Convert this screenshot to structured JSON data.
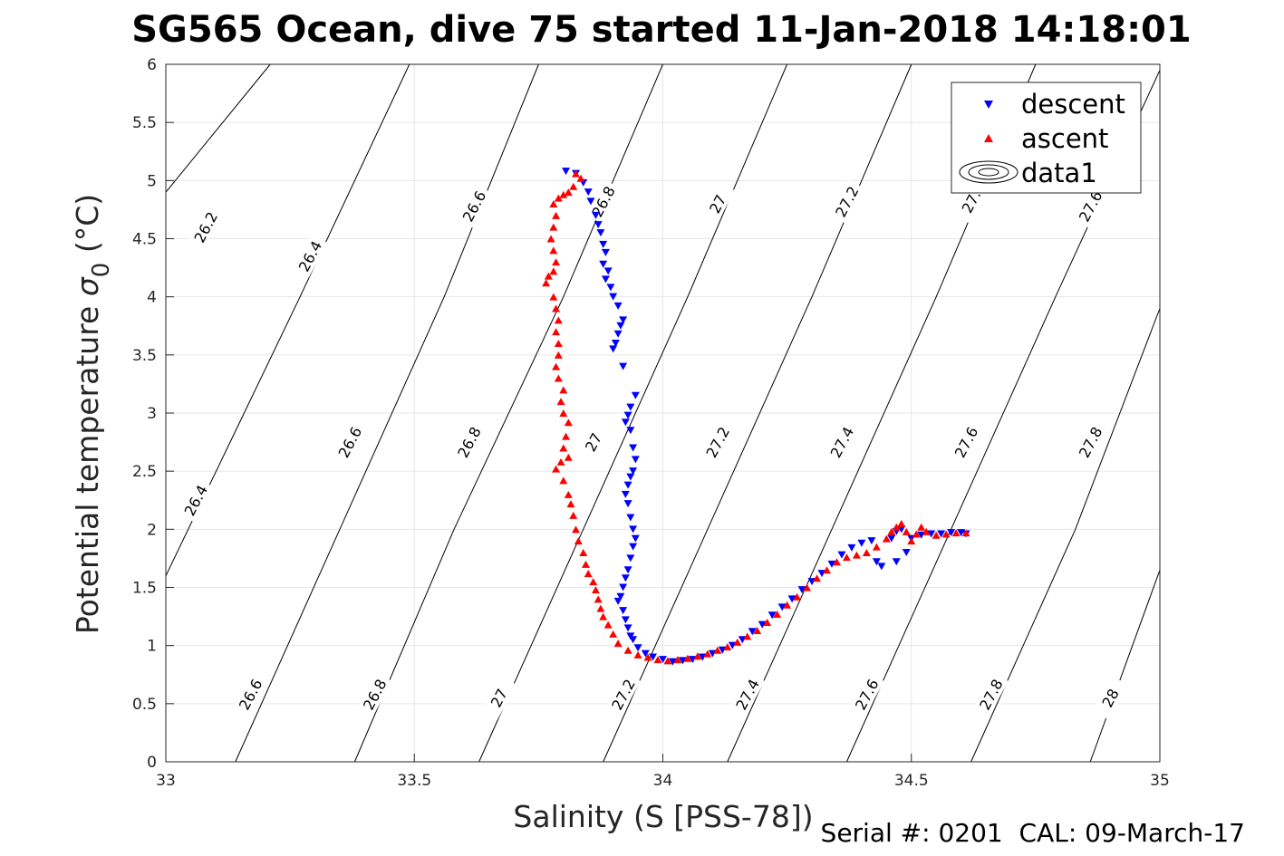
{
  "chart_data": {
    "type": "scatter",
    "title": "SG565 Ocean, dive 75 started 11-Jan-2018 14:18:01",
    "xlabel": "Salinity (S [PSS-78])",
    "ylabel": "Potential temperature",
    "ylabel_symbol": "σ",
    "ylabel_sub": "0",
    "ylabel_unit": "(°C)",
    "footer": "Serial #: 0201  CAL: 09-March-17",
    "xlim": [
      33,
      35
    ],
    "ylim": [
      0,
      6
    ],
    "xticks": [
      "33",
      "33.5",
      "34",
      "34.5",
      "35"
    ],
    "yticks": [
      "0",
      "0.5",
      "1",
      "1.5",
      "2",
      "2.5",
      "3",
      "3.5",
      "4",
      "4.5",
      "5",
      "5.5",
      "6"
    ],
    "grid": true,
    "legend": {
      "placement": "top-right",
      "entries": [
        {
          "name": "descent",
          "marker": "triangle-down",
          "color": "#0000ff"
        },
        {
          "name": "ascent",
          "marker": "triangle-up",
          "color": "#ff0000"
        },
        {
          "name": "data1",
          "marker": "contour",
          "color": "#000000"
        }
      ]
    },
    "contours": [
      {
        "level": "26.2",
        "points": [
          [
            33.0,
            4.9
          ],
          [
            33.21,
            6.0
          ]
        ]
      },
      {
        "level": "26.4",
        "points": [
          [
            33.0,
            1.6
          ],
          [
            33.27,
            4.0
          ],
          [
            33.49,
            6.0
          ]
        ]
      },
      {
        "level": "26.6",
        "points": [
          [
            33.14,
            0.0
          ],
          [
            33.35,
            2.0
          ],
          [
            33.56,
            4.0
          ],
          [
            33.75,
            6.0
          ]
        ]
      },
      {
        "level": "26.8",
        "points": [
          [
            33.38,
            0.0
          ],
          [
            33.58,
            2.0
          ],
          [
            33.8,
            4.0
          ],
          [
            34.0,
            6.0
          ]
        ]
      },
      {
        "level": "27",
        "points": [
          [
            33.63,
            0.0
          ],
          [
            33.84,
            2.0
          ],
          [
            34.05,
            4.0
          ],
          [
            34.25,
            6.0
          ]
        ]
      },
      {
        "level": "27.2",
        "points": [
          [
            33.88,
            0.0
          ],
          [
            34.09,
            2.0
          ],
          [
            34.3,
            4.0
          ],
          [
            34.5,
            6.0
          ]
        ]
      },
      {
        "level": "27.4",
        "points": [
          [
            34.13,
            0.0
          ],
          [
            34.34,
            2.0
          ],
          [
            34.55,
            4.0
          ],
          [
            34.75,
            6.0
          ]
        ]
      },
      {
        "level": "27.6",
        "points": [
          [
            34.37,
            0.0
          ],
          [
            34.58,
            2.0
          ],
          [
            34.79,
            4.0
          ],
          [
            35.0,
            5.95
          ]
        ]
      },
      {
        "level": "27.8",
        "points": [
          [
            34.62,
            0.0
          ],
          [
            34.83,
            2.0
          ],
          [
            35.0,
            3.9
          ]
        ]
      },
      {
        "level": "28",
        "points": [
          [
            34.86,
            0.0
          ],
          [
            35.0,
            1.65
          ]
        ]
      }
    ],
    "contour_labels": [
      {
        "text": "26.2",
        "x": 33.08,
        "y": 4.6
      },
      {
        "text": "26.4",
        "x": 33.29,
        "y": 4.35
      },
      {
        "text": "26.6",
        "x": 33.62,
        "y": 4.78
      },
      {
        "text": "26.8",
        "x": 33.88,
        "y": 4.82
      },
      {
        "text": "27",
        "x": 34.11,
        "y": 4.8
      },
      {
        "text": "27.2",
        "x": 34.37,
        "y": 4.82
      },
      {
        "text": "27.",
        "x": 34.62,
        "y": 4.82
      },
      {
        "text": "27.6",
        "x": 34.86,
        "y": 4.78
      },
      {
        "text": "26.4",
        "x": 33.06,
        "y": 2.25
      },
      {
        "text": "26.6",
        "x": 33.37,
        "y": 2.75
      },
      {
        "text": "26.8",
        "x": 33.61,
        "y": 2.75
      },
      {
        "text": "27",
        "x": 33.86,
        "y": 2.75
      },
      {
        "text": "27.2",
        "x": 34.11,
        "y": 2.75
      },
      {
        "text": "27.4",
        "x": 34.36,
        "y": 2.75
      },
      {
        "text": "27.6",
        "x": 34.61,
        "y": 2.75
      },
      {
        "text": "27.8",
        "x": 34.86,
        "y": 2.75
      },
      {
        "text": "26.6",
        "x": 33.17,
        "y": 0.58
      },
      {
        "text": "26.8",
        "x": 33.42,
        "y": 0.58
      },
      {
        "text": "27",
        "x": 33.67,
        "y": 0.55
      },
      {
        "text": "27.2",
        "x": 33.92,
        "y": 0.58
      },
      {
        "text": "27.4",
        "x": 34.17,
        "y": 0.58
      },
      {
        "text": "27.6",
        "x": 34.41,
        "y": 0.58
      },
      {
        "text": "27.8",
        "x": 34.66,
        "y": 0.58
      },
      {
        "text": "28",
        "x": 34.9,
        "y": 0.55
      }
    ],
    "series": [
      {
        "name": "descent",
        "marker": "triangle-down",
        "color": "#0000ff",
        "points": [
          [
            33.805,
            5.08
          ],
          [
            33.825,
            5.06
          ],
          [
            33.84,
            4.98
          ],
          [
            33.85,
            4.9
          ],
          [
            33.855,
            4.82
          ],
          [
            33.865,
            4.7
          ],
          [
            33.87,
            4.62
          ],
          [
            33.875,
            4.55
          ],
          [
            33.88,
            4.45
          ],
          [
            33.885,
            4.38
          ],
          [
            33.88,
            4.28
          ],
          [
            33.89,
            4.22
          ],
          [
            33.885,
            4.15
          ],
          [
            33.895,
            4.08
          ],
          [
            33.9,
            4.0
          ],
          [
            33.91,
            3.92
          ],
          [
            33.92,
            3.8
          ],
          [
            33.915,
            3.75
          ],
          [
            33.91,
            3.68
          ],
          [
            33.905,
            3.6
          ],
          [
            33.9,
            3.55
          ],
          [
            33.92,
            3.4
          ],
          [
            33.945,
            3.15
          ],
          [
            33.935,
            3.05
          ],
          [
            33.93,
            2.98
          ],
          [
            33.925,
            2.92
          ],
          [
            33.935,
            2.85
          ],
          [
            33.94,
            2.7
          ],
          [
            33.945,
            2.6
          ],
          [
            33.94,
            2.5
          ],
          [
            33.935,
            2.45
          ],
          [
            33.93,
            2.38
          ],
          [
            33.925,
            2.3
          ],
          [
            33.93,
            2.22
          ],
          [
            33.935,
            2.1
          ],
          [
            33.94,
            2.0
          ],
          [
            33.945,
            1.92
          ],
          [
            33.94,
            1.85
          ],
          [
            33.935,
            1.75
          ],
          [
            33.93,
            1.65
          ],
          [
            33.925,
            1.58
          ],
          [
            33.92,
            1.5
          ],
          [
            33.915,
            1.42
          ],
          [
            33.91,
            1.38
          ],
          [
            33.92,
            1.3
          ],
          [
            33.925,
            1.22
          ],
          [
            33.93,
            1.15
          ],
          [
            33.935,
            1.08
          ],
          [
            33.94,
            1.05
          ],
          [
            33.95,
            0.98
          ],
          [
            33.965,
            0.93
          ],
          [
            33.98,
            0.9
          ],
          [
            34.0,
            0.88
          ],
          [
            34.02,
            0.86
          ],
          [
            34.04,
            0.87
          ],
          [
            34.06,
            0.88
          ],
          [
            34.08,
            0.9
          ],
          [
            34.1,
            0.93
          ],
          [
            34.12,
            0.96
          ],
          [
            34.14,
            1.0
          ],
          [
            34.16,
            1.05
          ],
          [
            34.18,
            1.12
          ],
          [
            34.2,
            1.18
          ],
          [
            34.22,
            1.26
          ],
          [
            34.24,
            1.33
          ],
          [
            34.26,
            1.4
          ],
          [
            34.28,
            1.48
          ],
          [
            34.3,
            1.55
          ],
          [
            34.32,
            1.62
          ],
          [
            34.34,
            1.7
          ],
          [
            34.36,
            1.78
          ],
          [
            34.38,
            1.84
          ],
          [
            34.4,
            1.88
          ],
          [
            34.42,
            1.9
          ],
          [
            34.43,
            1.72
          ],
          [
            34.44,
            1.68
          ],
          [
            34.46,
            1.92
          ],
          [
            34.47,
            1.98
          ],
          [
            34.48,
            2.0
          ],
          [
            34.47,
            1.72
          ],
          [
            34.49,
            1.8
          ],
          [
            34.5,
            1.92
          ],
          [
            34.52,
            1.95
          ],
          [
            34.54,
            1.96
          ],
          [
            34.56,
            1.96
          ],
          [
            34.58,
            1.97
          ],
          [
            34.6,
            1.97
          ],
          [
            34.61,
            1.96
          ]
        ]
      },
      {
        "name": "ascent",
        "marker": "triangle-up",
        "color": "#ff0000",
        "points": [
          [
            33.825,
            5.06
          ],
          [
            33.835,
            5.02
          ],
          [
            33.82,
            4.95
          ],
          [
            33.81,
            4.9
          ],
          [
            33.8,
            4.88
          ],
          [
            33.79,
            4.85
          ],
          [
            33.78,
            4.8
          ],
          [
            33.785,
            4.7
          ],
          [
            33.78,
            4.6
          ],
          [
            33.775,
            4.5
          ],
          [
            33.78,
            4.4
          ],
          [
            33.785,
            4.3
          ],
          [
            33.78,
            4.22
          ],
          [
            33.77,
            4.18
          ],
          [
            33.765,
            4.12
          ],
          [
            33.78,
            4.0
          ],
          [
            33.785,
            3.9
          ],
          [
            33.79,
            3.8
          ],
          [
            33.785,
            3.7
          ],
          [
            33.79,
            3.6
          ],
          [
            33.79,
            3.5
          ],
          [
            33.785,
            3.4
          ],
          [
            33.79,
            3.3
          ],
          [
            33.8,
            3.2
          ],
          [
            33.795,
            3.1
          ],
          [
            33.8,
            3.0
          ],
          [
            33.81,
            2.92
          ],
          [
            33.805,
            2.8
          ],
          [
            33.8,
            2.7
          ],
          [
            33.81,
            2.62
          ],
          [
            33.795,
            2.58
          ],
          [
            33.785,
            2.52
          ],
          [
            33.8,
            2.42
          ],
          [
            33.81,
            2.3
          ],
          [
            33.815,
            2.22
          ],
          [
            33.82,
            2.12
          ],
          [
            33.825,
            2.0
          ],
          [
            33.83,
            1.9
          ],
          [
            33.84,
            1.8
          ],
          [
            33.845,
            1.7
          ],
          [
            33.85,
            1.62
          ],
          [
            33.86,
            1.55
          ],
          [
            33.865,
            1.48
          ],
          [
            33.87,
            1.4
          ],
          [
            33.875,
            1.32
          ],
          [
            33.88,
            1.25
          ],
          [
            33.89,
            1.18
          ],
          [
            33.9,
            1.1
          ],
          [
            33.91,
            1.02
          ],
          [
            33.93,
            0.96
          ],
          [
            33.95,
            0.92
          ],
          [
            33.97,
            0.9
          ],
          [
            33.99,
            0.88
          ],
          [
            34.01,
            0.87
          ],
          [
            34.03,
            0.88
          ],
          [
            34.05,
            0.89
          ],
          [
            34.07,
            0.91
          ],
          [
            34.09,
            0.93
          ],
          [
            34.11,
            0.96
          ],
          [
            34.13,
            0.99
          ],
          [
            34.15,
            1.03
          ],
          [
            34.17,
            1.08
          ],
          [
            34.19,
            1.13
          ],
          [
            34.21,
            1.2
          ],
          [
            34.23,
            1.27
          ],
          [
            34.25,
            1.35
          ],
          [
            34.27,
            1.42
          ],
          [
            34.29,
            1.5
          ],
          [
            34.31,
            1.58
          ],
          [
            34.33,
            1.65
          ],
          [
            34.35,
            1.72
          ],
          [
            34.37,
            1.76
          ],
          [
            34.39,
            1.78
          ],
          [
            34.41,
            1.8
          ],
          [
            34.43,
            1.85
          ],
          [
            34.45,
            1.92
          ],
          [
            34.46,
            1.98
          ],
          [
            34.47,
            2.02
          ],
          [
            34.48,
            2.05
          ],
          [
            34.49,
            1.98
          ],
          [
            34.5,
            1.9
          ],
          [
            34.51,
            1.96
          ],
          [
            34.52,
            2.02
          ],
          [
            34.53,
            1.98
          ],
          [
            34.55,
            1.95
          ],
          [
            34.57,
            1.96
          ],
          [
            34.59,
            1.97
          ],
          [
            34.61,
            1.97
          ]
        ]
      }
    ]
  }
}
